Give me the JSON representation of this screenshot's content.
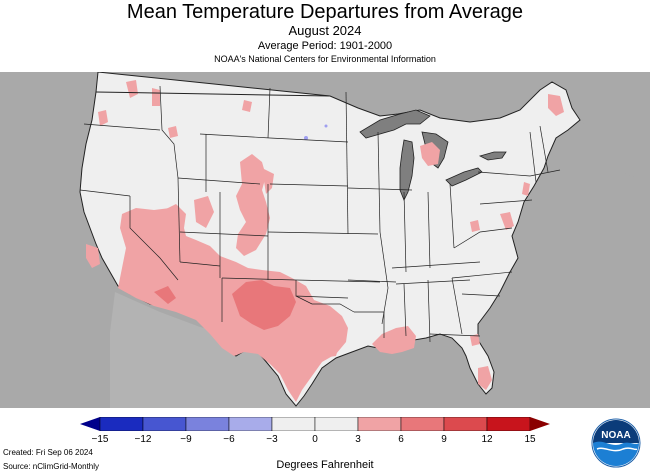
{
  "header": {
    "title": "Mean Temperature Departures from Average",
    "subtitle": "August 2024",
    "period": "Average Period: 1901-2000",
    "organization": "NOAA's National Centers for Environmental Information"
  },
  "legend": {
    "units": "Degrees Fahrenheit",
    "ticks": [
      "−15",
      "−12",
      "−9",
      "−6",
      "−3",
      "0",
      "3",
      "6",
      "9",
      "12",
      "15"
    ],
    "colors": [
      "#1a2bbf",
      "#4756d1",
      "#7a82dd",
      "#a8acea",
      "#efefef",
      "#efefef",
      "#f0a3a5",
      "#e8777a",
      "#dc4a4e",
      "#c8141c"
    ],
    "end_low_color": "#00008b",
    "end_high_color": "#8b0000"
  },
  "footer": {
    "created": "Created: Fri Sep 06 2024",
    "source": "Source: nClimGrid-Monthly"
  },
  "logo": {
    "text": "NOAA"
  },
  "map": {
    "land_color": "#efefef",
    "outside_color": "#a9a9a9",
    "water_color": "#7f7f7f",
    "border_color": "#222222",
    "warm_color": "#f0a3a5",
    "warmer_color": "#e8777a",
    "cool_color": "#9f9ff0"
  }
}
